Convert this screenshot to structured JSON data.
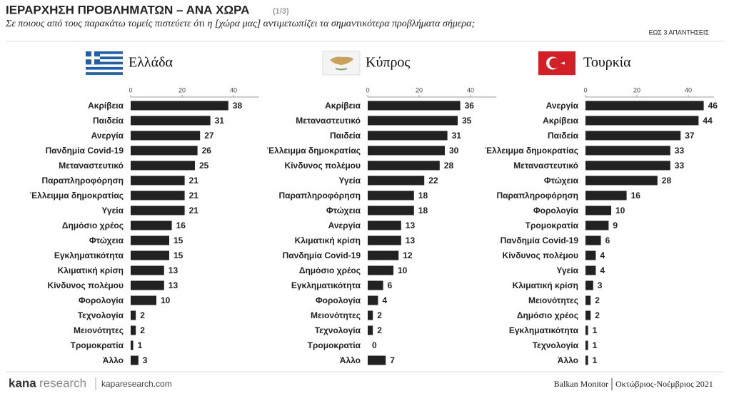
{
  "header": {
    "title": "ΙΕΡΑΡΧΗΣΗ ΠΡΟΒΛΗΜΑΤΩΝ – ΑΝΑ ΧΩΡΑ",
    "page": "(1/3)",
    "subtitle": "Σε ποιους από τους παρακάτω τομείς πιστεύετε ότι η [χώρα μας] αντιμετωπίζει τα σημαντικότερα προβλήματα σήμερα;",
    "note": "ΕΩΣ 3 ΑΠΑΝΤΗΣΕΙΣ"
  },
  "footer": {
    "logo_a": "kana",
    "logo_b": "research",
    "site": "kaparesearch.com",
    "source": "Balkan Monitor",
    "period": "Οκτώβριος-Νοέμβριος 2021"
  },
  "chart_data": [
    {
      "type": "bar",
      "orientation": "horizontal",
      "title": "Ελλάδα",
      "color": "#222222",
      "xlim": [
        0,
        50
      ],
      "xticks": [
        0,
        20,
        40
      ],
      "categories": [
        "Ακρίβεια",
        "Παιδεία",
        "Ανεργία",
        "Πανδημία Covid-19",
        "Μεταναστευτικό",
        "Παραπληροφόρηση",
        "Έλλειμμα δημοκρατίας",
        "Υγεία",
        "Δημόσιο χρέος",
        "Φτώχεια",
        "Εγκληματικότητα",
        "Κλιματική κρίση",
        "Κίνδυνος πολέμου",
        "Φορολογία",
        "Τεχνολογία",
        "Μειονότητες",
        "Τρομοκρατία",
        "Άλλο"
      ],
      "values": [
        38,
        31,
        27,
        26,
        25,
        21,
        21,
        21,
        16,
        15,
        15,
        13,
        13,
        10,
        2,
        2,
        1,
        3
      ]
    },
    {
      "type": "bar",
      "orientation": "horizontal",
      "title": "Κύπρος",
      "color": "#222222",
      "xlim": [
        0,
        50
      ],
      "xticks": [
        0,
        20,
        40
      ],
      "categories": [
        "Ακρίβεια",
        "Μεταναστευτικό",
        "Παιδεία",
        "Έλλειμμα δημοκρατίας",
        "Κίνδυνος πολέμου",
        "Υγεία",
        "Παραπληροφόρηση",
        "Φτώχεια",
        "Ανεργία",
        "Κλιματική κρίση",
        "Πανδημία Covid-19",
        "Δημόσιο χρέος",
        "Εγκληματικότητα",
        "Φορολογία",
        "Μειονότητες",
        "Τεχνολογία",
        "Τρομοκρατία",
        "Άλλο"
      ],
      "values": [
        36,
        35,
        31,
        30,
        28,
        22,
        18,
        18,
        13,
        13,
        12,
        10,
        6,
        4,
        2,
        2,
        0,
        7
      ]
    },
    {
      "type": "bar",
      "orientation": "horizontal",
      "title": "Τουρκία",
      "color": "#222222",
      "xlim": [
        0,
        50
      ],
      "xticks": [
        0,
        20,
        40
      ],
      "categories": [
        "Ανεργία",
        "Ακρίβεια",
        "Παιδεία",
        "Έλλειμμα δημοκρατίας",
        "Μεταναστευτικό",
        "Φτώχεια",
        "Παραπληροφόρηση",
        "Φορολογία",
        "Τρομοκρατία",
        "Πανδημία Covid-19",
        "Κίνδυνος πολέμου",
        "Υγεία",
        "Κλιματική κρίση",
        "Μειονότητες",
        "Δημόσιο χρέος",
        "Εγκληματικότητα",
        "Τεχνολογία",
        "Άλλο"
      ],
      "values": [
        46,
        44,
        37,
        33,
        33,
        28,
        16,
        10,
        9,
        6,
        4,
        4,
        3,
        2,
        2,
        1,
        1,
        1
      ]
    }
  ]
}
